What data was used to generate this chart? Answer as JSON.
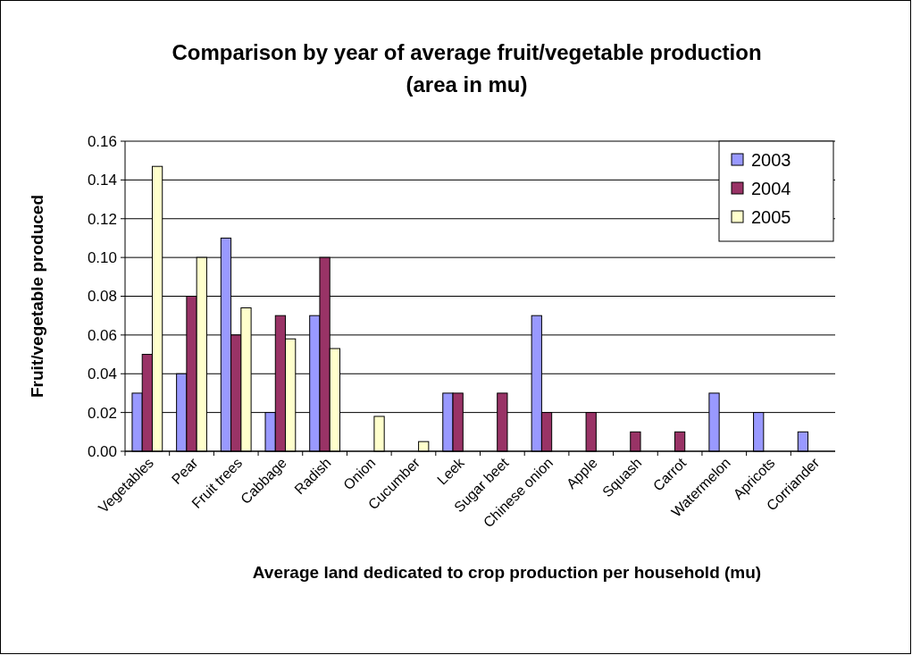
{
  "chart_data": {
    "type": "bar",
    "title": "Comparison by year of average fruit/vegetable production (area in mu)",
    "xlabel": "Average land dedicated to crop production per household (mu)",
    "ylabel": "Fruit/vegetable produced",
    "categories": [
      "Vegetables",
      "Pear",
      "Fruit trees",
      "Cabbage",
      "Radish",
      "Onion",
      "Cucumber",
      "Leek",
      "Sugar beet",
      "Chinese onion",
      "Apple",
      "Squash",
      "Carrot",
      "Watermelon",
      "Apricots",
      "Corriander"
    ],
    "series": [
      {
        "name": "2003",
        "color": "#9999ff",
        "values": [
          0.03,
          0.04,
          0.11,
          0.02,
          0.07,
          null,
          null,
          0.03,
          null,
          0.07,
          null,
          null,
          null,
          0.03,
          0.02,
          0.01
        ]
      },
      {
        "name": "2004",
        "color": "#993366",
        "values": [
          0.05,
          0.08,
          0.06,
          0.07,
          0.1,
          null,
          null,
          0.03,
          0.03,
          0.02,
          0.02,
          0.01,
          0.01,
          null,
          null,
          null
        ]
      },
      {
        "name": "2005",
        "color": "#ffffcc",
        "values": [
          0.147,
          0.1,
          0.074,
          0.058,
          0.053,
          0.018,
          0.005,
          null,
          null,
          null,
          null,
          null,
          null,
          null,
          null,
          null
        ]
      }
    ],
    "ylim": [
      0,
      0.16
    ],
    "yticks": [
      {
        "value": 0,
        "label": "0.00"
      },
      {
        "value": 0.02,
        "label": "0.02"
      },
      {
        "value": 0.04,
        "label": "0.04"
      },
      {
        "value": 0.06,
        "label": "0.06"
      },
      {
        "value": 0.08,
        "label": "0.08"
      },
      {
        "value": 0.1,
        "label": "0.10"
      },
      {
        "value": 0.12,
        "label": "0.12"
      },
      {
        "value": 0.14,
        "label": "0.14"
      },
      {
        "value": 0.16,
        "label": "0.16"
      }
    ],
    "grid": "y",
    "legend": "top right"
  }
}
